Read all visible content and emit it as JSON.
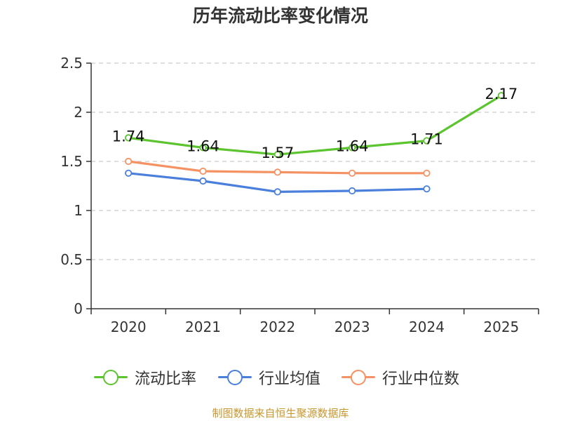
{
  "chart_data": {
    "type": "line",
    "title": "历年流动比率变化情况",
    "categories": [
      "2020",
      "2021",
      "2022",
      "2023",
      "2024",
      "2025"
    ],
    "ylim": [
      0,
      2.5
    ],
    "yticks": [
      "0",
      "0.5",
      "1",
      "1.5",
      "2",
      "2.5"
    ],
    "grid": true,
    "legend_position": "bottom",
    "series": [
      {
        "name": "流动比率",
        "color": "#5bc42e",
        "values": [
          1.74,
          1.64,
          1.57,
          1.64,
          1.71,
          2.17
        ],
        "labels": [
          "1.74",
          "1.64",
          "1.57",
          "1.64",
          "1.71",
          "2.17"
        ],
        "show_labels": true
      },
      {
        "name": "行业均值",
        "color": "#4a7fdc",
        "values": [
          1.38,
          1.3,
          1.19,
          1.2,
          1.22,
          null
        ],
        "show_labels": false
      },
      {
        "name": "行业中位数",
        "color": "#f59263",
        "values": [
          1.5,
          1.4,
          1.39,
          1.38,
          1.38,
          null
        ],
        "show_labels": false
      }
    ],
    "source": "制图数据来自恒生聚源数据库"
  }
}
